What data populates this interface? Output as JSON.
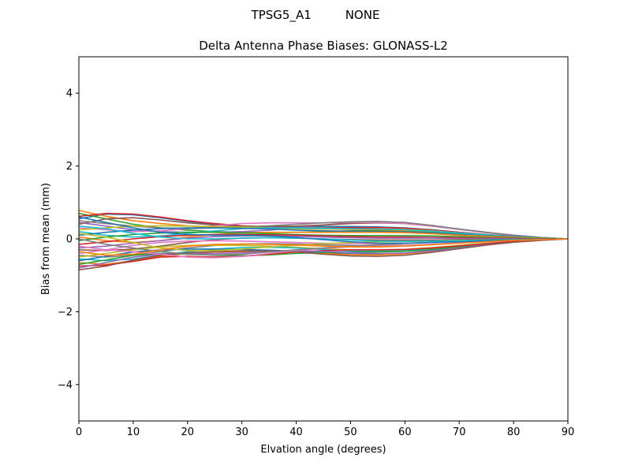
{
  "suptitle": "TPSG5_A1         NONE",
  "chart_data": {
    "type": "line",
    "title": "Delta Antenna Phase Biases: GLONASS-L2",
    "xlabel": "Elvation angle (degrees)",
    "ylabel": "Bias from mean (mm)",
    "xlim": [
      0,
      90
    ],
    "ylim": [
      -5,
      5
    ],
    "xticks": [
      0,
      10,
      20,
      30,
      40,
      50,
      60,
      70,
      80,
      90
    ],
    "yticks": [
      -4,
      -2,
      0,
      2,
      4
    ],
    "ytick_labels": [
      "−4",
      "−2",
      "0",
      "2",
      "4"
    ],
    "grid": false,
    "legend": "none",
    "x": [
      0,
      5,
      10,
      15,
      20,
      25,
      30,
      35,
      40,
      45,
      50,
      55,
      60,
      65,
      70,
      75,
      80,
      85,
      90
    ],
    "colors": [
      "#1f77b4",
      "#ff7f0e",
      "#2ca02c",
      "#d62728",
      "#9467bd",
      "#8c564b",
      "#e377c2",
      "#7f7f7f",
      "#bcbd22",
      "#17becf"
    ],
    "series": [
      {
        "values": [
          0.55,
          0.68,
          0.66,
          0.58,
          0.48,
          0.4,
          0.35,
          0.33,
          0.33,
          0.34,
          0.34,
          0.33,
          0.3,
          0.25,
          0.18,
          0.12,
          0.07,
          0.03,
          0.0
        ]
      },
      {
        "values": [
          0.78,
          0.62,
          0.5,
          0.42,
          0.36,
          0.32,
          0.3,
          0.29,
          0.28,
          0.27,
          0.26,
          0.25,
          0.23,
          0.19,
          0.14,
          0.1,
          0.06,
          0.03,
          0.0
        ]
      },
      {
        "values": [
          0.7,
          0.55,
          0.4,
          0.3,
          0.24,
          0.2,
          0.18,
          0.17,
          0.18,
          0.2,
          0.22,
          0.22,
          0.2,
          0.17,
          0.13,
          0.09,
          0.05,
          0.02,
          0.0
        ]
      },
      {
        "values": [
          0.62,
          0.7,
          0.68,
          0.6,
          0.5,
          0.42,
          0.36,
          0.32,
          0.3,
          0.3,
          0.31,
          0.31,
          0.29,
          0.24,
          0.18,
          0.12,
          0.07,
          0.03,
          0.0
        ]
      },
      {
        "values": [
          0.45,
          0.35,
          0.25,
          0.2,
          0.18,
          0.18,
          0.2,
          0.24,
          0.3,
          0.38,
          0.44,
          0.46,
          0.43,
          0.36,
          0.27,
          0.18,
          0.1,
          0.04,
          0.0
        ]
      },
      {
        "values": [
          0.4,
          0.55,
          0.58,
          0.52,
          0.44,
          0.38,
          0.35,
          0.34,
          0.35,
          0.38,
          0.42,
          0.44,
          0.42,
          0.35,
          0.26,
          0.17,
          0.1,
          0.04,
          0.0
        ]
      },
      {
        "values": [
          0.3,
          0.25,
          0.2,
          0.22,
          0.28,
          0.36,
          0.42,
          0.44,
          0.44,
          0.44,
          0.45,
          0.45,
          0.42,
          0.35,
          0.26,
          0.17,
          0.1,
          0.04,
          0.0
        ]
      },
      {
        "values": [
          0.5,
          0.42,
          0.35,
          0.3,
          0.28,
          0.3,
          0.33,
          0.36,
          0.4,
          0.44,
          0.47,
          0.48,
          0.45,
          0.37,
          0.27,
          0.18,
          0.1,
          0.04,
          0.0
        ]
      },
      {
        "values": [
          0.25,
          0.3,
          0.35,
          0.36,
          0.35,
          0.34,
          0.32,
          0.3,
          0.28,
          0.27,
          0.27,
          0.27,
          0.26,
          0.22,
          0.16,
          0.11,
          0.06,
          0.03,
          0.0
        ]
      },
      {
        "values": [
          0.2,
          0.1,
          0.05,
          0.08,
          0.15,
          0.22,
          0.28,
          0.3,
          0.3,
          0.29,
          0.28,
          0.27,
          0.25,
          0.21,
          0.16,
          0.11,
          0.06,
          0.03,
          0.0
        ]
      },
      {
        "values": [
          0.1,
          0.18,
          0.24,
          0.28,
          0.3,
          0.3,
          0.29,
          0.27,
          0.24,
          0.22,
          0.21,
          0.2,
          0.19,
          0.16,
          0.12,
          0.08,
          0.05,
          0.02,
          0.0
        ]
      },
      {
        "values": [
          0.05,
          -0.05,
          -0.1,
          -0.05,
          0.05,
          0.12,
          0.16,
          0.18,
          0.18,
          0.18,
          0.18,
          0.18,
          0.17,
          0.14,
          0.1,
          0.07,
          0.04,
          0.02,
          0.0
        ]
      },
      {
        "values": [
          -0.05,
          0.05,
          0.12,
          0.16,
          0.18,
          0.18,
          0.16,
          0.14,
          0.12,
          0.1,
          0.09,
          0.09,
          0.09,
          0.08,
          0.06,
          0.04,
          0.02,
          0.01,
          0.0
        ]
      },
      {
        "values": [
          -0.15,
          -0.08,
          0.0,
          0.06,
          0.1,
          0.12,
          0.12,
          0.11,
          0.1,
          0.08,
          0.06,
          0.05,
          0.05,
          0.04,
          0.03,
          0.02,
          0.01,
          0.0,
          0.0
        ]
      },
      {
        "values": [
          -0.25,
          -0.2,
          -0.12,
          -0.05,
          0.02,
          0.06,
          0.08,
          0.08,
          0.07,
          0.05,
          0.03,
          0.02,
          0.02,
          0.02,
          0.01,
          0.01,
          0.0,
          0.0,
          0.0
        ]
      },
      {
        "values": [
          -0.3,
          -0.32,
          -0.28,
          -0.2,
          -0.1,
          -0.02,
          0.02,
          0.03,
          0.02,
          0.0,
          -0.02,
          -0.03,
          -0.03,
          -0.03,
          -0.02,
          -0.01,
          -0.01,
          0.0,
          0.0
        ]
      },
      {
        "values": [
          -0.4,
          -0.3,
          -0.18,
          -0.1,
          -0.06,
          -0.05,
          -0.06,
          -0.08,
          -0.1,
          -0.12,
          -0.13,
          -0.13,
          -0.12,
          -0.1,
          -0.07,
          -0.05,
          -0.03,
          -0.01,
          0.0
        ]
      },
      {
        "values": [
          -0.45,
          -0.5,
          -0.45,
          -0.35,
          -0.25,
          -0.18,
          -0.14,
          -0.13,
          -0.14,
          -0.16,
          -0.18,
          -0.19,
          -0.18,
          -0.15,
          -0.11,
          -0.07,
          -0.04,
          -0.02,
          0.0
        ]
      },
      {
        "values": [
          -0.5,
          -0.4,
          -0.3,
          -0.22,
          -0.18,
          -0.17,
          -0.18,
          -0.2,
          -0.23,
          -0.27,
          -0.3,
          -0.31,
          -0.29,
          -0.24,
          -0.18,
          -0.12,
          -0.07,
          -0.03,
          0.0
        ]
      },
      {
        "values": [
          -0.55,
          -0.6,
          -0.55,
          -0.45,
          -0.35,
          -0.28,
          -0.24,
          -0.23,
          -0.25,
          -0.29,
          -0.33,
          -0.34,
          -0.32,
          -0.27,
          -0.2,
          -0.13,
          -0.07,
          -0.03,
          0.0
        ]
      },
      {
        "values": [
          -0.6,
          -0.48,
          -0.36,
          -0.3,
          -0.28,
          -0.28,
          -0.29,
          -0.31,
          -0.34,
          -0.38,
          -0.41,
          -0.42,
          -0.39,
          -0.32,
          -0.24,
          -0.16,
          -0.09,
          -0.04,
          0.0
        ]
      },
      {
        "values": [
          -0.65,
          -0.7,
          -0.6,
          -0.48,
          -0.4,
          -0.36,
          -0.35,
          -0.35,
          -0.37,
          -0.4,
          -0.43,
          -0.44,
          -0.41,
          -0.34,
          -0.25,
          -0.16,
          -0.09,
          -0.04,
          0.0
        ]
      },
      {
        "values": [
          -0.7,
          -0.58,
          -0.45,
          -0.4,
          -0.42,
          -0.45,
          -0.46,
          -0.44,
          -0.4,
          -0.37,
          -0.36,
          -0.36,
          -0.34,
          -0.29,
          -0.22,
          -0.14,
          -0.08,
          -0.03,
          0.0
        ]
      },
      {
        "values": [
          -0.75,
          -0.72,
          -0.62,
          -0.5,
          -0.48,
          -0.5,
          -0.48,
          -0.42,
          -0.36,
          -0.32,
          -0.3,
          -0.3,
          -0.29,
          -0.25,
          -0.19,
          -0.13,
          -0.07,
          -0.03,
          0.0
        ]
      },
      {
        "values": [
          -0.8,
          -0.65,
          -0.5,
          -0.42,
          -0.4,
          -0.4,
          -0.38,
          -0.35,
          -0.33,
          -0.34,
          -0.37,
          -0.4,
          -0.39,
          -0.33,
          -0.25,
          -0.16,
          -0.09,
          -0.04,
          0.0
        ]
      },
      {
        "values": [
          -0.85,
          -0.75,
          -0.58,
          -0.45,
          -0.38,
          -0.35,
          -0.33,
          -0.33,
          -0.36,
          -0.42,
          -0.47,
          -0.48,
          -0.45,
          -0.37,
          -0.27,
          -0.17,
          -0.09,
          -0.04,
          0.0
        ]
      },
      {
        "values": [
          -0.2,
          -0.3,
          -0.35,
          -0.42,
          -0.5,
          -0.52,
          -0.48,
          -0.4,
          -0.32,
          -0.26,
          -0.22,
          -0.2,
          -0.18,
          -0.15,
          -0.11,
          -0.07,
          -0.04,
          -0.02,
          0.0
        ]
      },
      {
        "values": [
          0.0,
          -0.15,
          -0.25,
          -0.35,
          -0.42,
          -0.44,
          -0.42,
          -0.36,
          -0.3,
          -0.25,
          -0.2,
          -0.16,
          -0.13,
          -0.1,
          -0.07,
          -0.05,
          -0.03,
          -0.01,
          0.0
        ]
      },
      {
        "values": [
          0.15,
          0.05,
          -0.1,
          -0.25,
          -0.32,
          -0.32,
          -0.28,
          -0.22,
          -0.17,
          -0.13,
          -0.1,
          -0.08,
          -0.07,
          -0.06,
          -0.04,
          -0.03,
          -0.02,
          -0.01,
          0.0
        ]
      },
      {
        "values": [
          0.35,
          0.28,
          0.15,
          0.05,
          0.0,
          0.0,
          0.02,
          0.03,
          0.02,
          0.0,
          -0.03,
          -0.06,
          -0.07,
          -0.06,
          -0.05,
          -0.03,
          -0.02,
          -0.01,
          0.0
        ]
      },
      {
        "values": [
          0.6,
          0.45,
          0.3,
          0.18,
          0.12,
          0.1,
          0.1,
          0.08,
          0.04,
          -0.02,
          -0.08,
          -0.12,
          -0.12,
          -0.1,
          -0.08,
          -0.05,
          -0.03,
          -0.01,
          0.0
        ]
      },
      {
        "values": [
          -0.35,
          -0.45,
          -0.42,
          -0.3,
          -0.2,
          -0.15,
          -0.14,
          -0.15,
          -0.17,
          -0.2,
          -0.22,
          -0.22,
          -0.2,
          -0.16,
          -0.12,
          -0.08,
          -0.04,
          -0.02,
          0.0
        ]
      }
    ]
  }
}
